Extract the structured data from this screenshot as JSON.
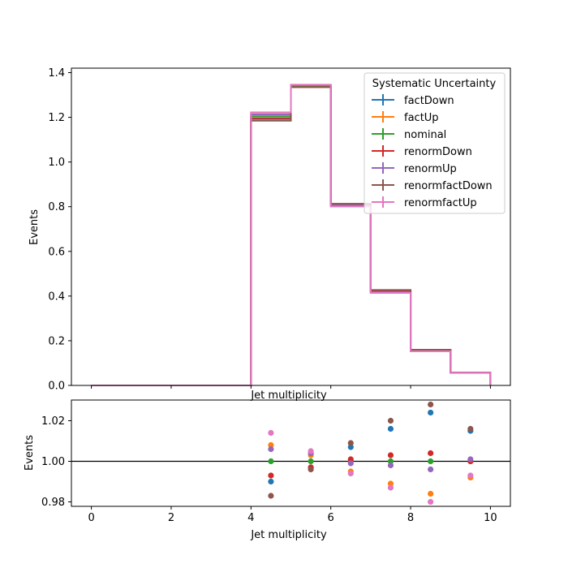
{
  "chart_data": [
    {
      "type": "step",
      "xlabel": "Jet multiplicity",
      "ylabel": "Events",
      "xlim": [
        -0.5,
        10.5
      ],
      "ylim": [
        0,
        1.42
      ],
      "xticks": [
        0,
        2,
        4,
        6,
        8,
        10
      ],
      "yticks": [
        "0.0",
        "0.2",
        "0.4",
        "0.6",
        "0.8",
        "1.0",
        "1.2",
        "1.4"
      ],
      "bin_edges": [
        0,
        1,
        2,
        3,
        4,
        5,
        6,
        7,
        8,
        9,
        10
      ],
      "legend": {
        "title": "Systematic Uncertainty",
        "position": "top-right"
      },
      "series": [
        {
          "name": "factDown",
          "color": "#1f77b4",
          "values": [
            0,
            0,
            0,
            0,
            1.193,
            1.337,
            0.812,
            0.426,
            0.159,
            0.058
          ]
        },
        {
          "name": "factUp",
          "color": "#ff7f0e",
          "values": [
            0,
            0,
            0,
            0,
            1.214,
            1.343,
            0.802,
            0.414,
            0.153,
            0.057
          ]
        },
        {
          "name": "nominal",
          "color": "#2ca02c",
          "values": [
            0,
            0,
            0,
            0,
            1.205,
            1.34,
            0.806,
            0.419,
            0.156,
            0.057
          ]
        },
        {
          "name": "renormDown",
          "color": "#d62728",
          "values": [
            0,
            0,
            0,
            0,
            1.196,
            1.335,
            0.807,
            0.421,
            0.157,
            0.057
          ]
        },
        {
          "name": "renormUp",
          "color": "#9467bd",
          "values": [
            0,
            0,
            0,
            0,
            1.213,
            1.345,
            0.806,
            0.418,
            0.155,
            0.057
          ]
        },
        {
          "name": "renormfactDown",
          "color": "#8c564b",
          "values": [
            0,
            0,
            0,
            0,
            1.185,
            1.335,
            0.813,
            0.427,
            0.16,
            0.058
          ]
        },
        {
          "name": "renormfactUp",
          "color": "#e377c2",
          "values": [
            0,
            0,
            0,
            0,
            1.222,
            1.346,
            0.801,
            0.414,
            0.153,
            0.057
          ]
        }
      ]
    },
    {
      "type": "scatter",
      "xlabel": "Jet multiplicity",
      "ylabel": "Events",
      "xlim": [
        -0.5,
        10.5
      ],
      "ylim": [
        0.9778,
        1.0302
      ],
      "xticks": [
        0,
        2,
        4,
        6,
        8,
        10
      ],
      "yticks": [
        "0.98",
        "1.00",
        "1.02"
      ],
      "reference_line": 1.0,
      "x": [
        4.5,
        5.5,
        6.5,
        7.5,
        8.5,
        9.5
      ],
      "series": [
        {
          "name": "factDown",
          "color": "#1f77b4",
          "values": [
            0.99,
            0.997,
            1.007,
            1.016,
            1.024,
            1.015
          ]
        },
        {
          "name": "factUp",
          "color": "#ff7f0e",
          "values": [
            1.008,
            1.003,
            0.995,
            0.989,
            0.984,
            0.992
          ]
        },
        {
          "name": "nominal",
          "color": "#2ca02c",
          "values": [
            1.0,
            1.0,
            1.0,
            1.0,
            1.0,
            1.0
          ]
        },
        {
          "name": "renormDown",
          "color": "#d62728",
          "values": [
            0.993,
            0.997,
            1.001,
            1.003,
            1.004,
            1.0
          ]
        },
        {
          "name": "renormUp",
          "color": "#9467bd",
          "values": [
            1.006,
            1.004,
            0.999,
            0.998,
            0.996,
            1.001
          ]
        },
        {
          "name": "renormfactDown",
          "color": "#8c564b",
          "values": [
            0.983,
            0.996,
            1.009,
            1.02,
            1.028,
            1.016
          ]
        },
        {
          "name": "renormfactUp",
          "color": "#e377c2",
          "values": [
            1.014,
            1.005,
            0.994,
            0.987,
            0.98,
            0.993
          ]
        }
      ]
    }
  ]
}
